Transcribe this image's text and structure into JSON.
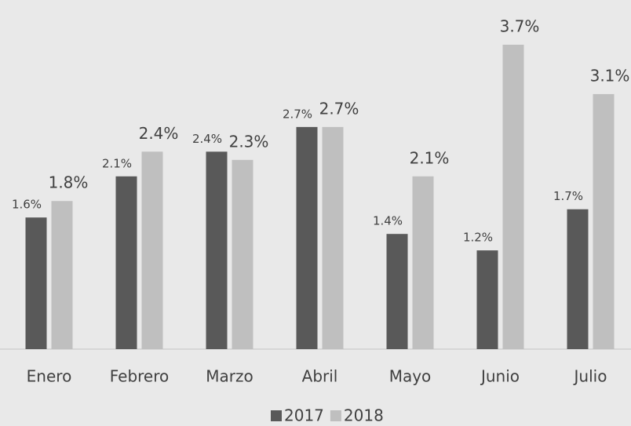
{
  "chart_data": {
    "type": "bar",
    "categories": [
      "Enero",
      "Febrero",
      "Marzo",
      "Abril",
      "Mayo",
      "Junio",
      "Julio"
    ],
    "series": [
      {
        "name": "2017",
        "color": "#595959",
        "values": [
          1.6,
          2.1,
          2.4,
          2.7,
          1.4,
          1.2,
          1.7
        ],
        "value_labels": [
          "1.6%",
          "2.1%",
          "2.4%",
          "2.7%",
          "1.4%",
          "1.2%",
          "1.7%"
        ]
      },
      {
        "name": "2018",
        "color": "#bfbfbf",
        "values": [
          1.8,
          2.4,
          2.3,
          2.7,
          2.1,
          3.7,
          3.1
        ],
        "value_labels": [
          "1.8%",
          "2.4%",
          "2.3%",
          "2.7%",
          "2.1%",
          "3.7%",
          "3.1%"
        ]
      }
    ],
    "legend": "bottom"
  }
}
